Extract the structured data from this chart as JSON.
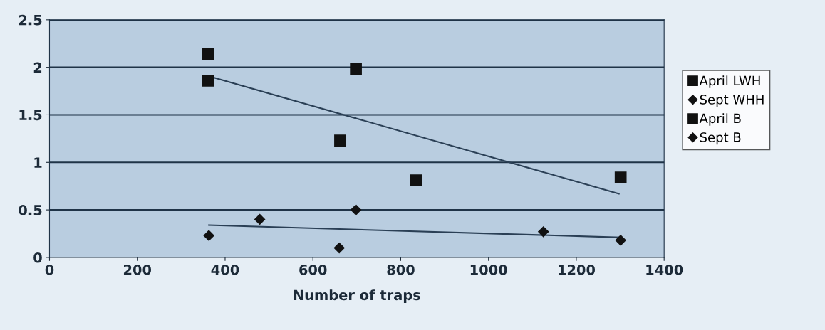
{
  "chart_data": {
    "type": "scatter",
    "xlabel": "Number of traps",
    "xlim": [
      0,
      1400
    ],
    "xticks": [
      0,
      200,
      400,
      600,
      800,
      1000,
      1200,
      1400
    ],
    "ylim": [
      0,
      2.5
    ],
    "yticks": [
      0,
      0.5,
      1,
      1.5,
      2,
      2.5
    ],
    "grid": "y",
    "legend": "right",
    "series": [
      {
        "name": "April LWH",
        "color": "#111111",
        "marker": "square",
        "x": [
          361,
          698,
          1301
        ],
        "values": [
          2.14,
          1.98,
          0.84
        ]
      },
      {
        "name": "Sept WHH",
        "color": "#111111",
        "marker": "diamond",
        "x": [
          363,
          698,
          1125
        ],
        "values": [
          0.23,
          0.5,
          0.27
        ]
      },
      {
        "name": "April B",
        "color": "#111111",
        "marker": "square",
        "x": [
          361,
          662,
          835
        ],
        "values": [
          1.86,
          1.23,
          0.81
        ]
      },
      {
        "name": "Sept B",
        "color": "#111111",
        "marker": "diamond",
        "x": [
          479,
          660,
          1301
        ],
        "values": [
          0.4,
          0.1,
          0.18
        ]
      },
      {
        "type": "line",
        "color": "#2a3f55",
        "marker": "none",
        "line_style": "solid",
        "x": [
          361,
          1297
        ],
        "values": [
          1.91,
          0.67
        ]
      },
      {
        "type": "line",
        "color": "#2a3f55",
        "marker": "none",
        "line_style": "solid",
        "x": [
          363,
          1301
        ],
        "values": [
          0.34,
          0.21
        ]
      }
    ]
  }
}
